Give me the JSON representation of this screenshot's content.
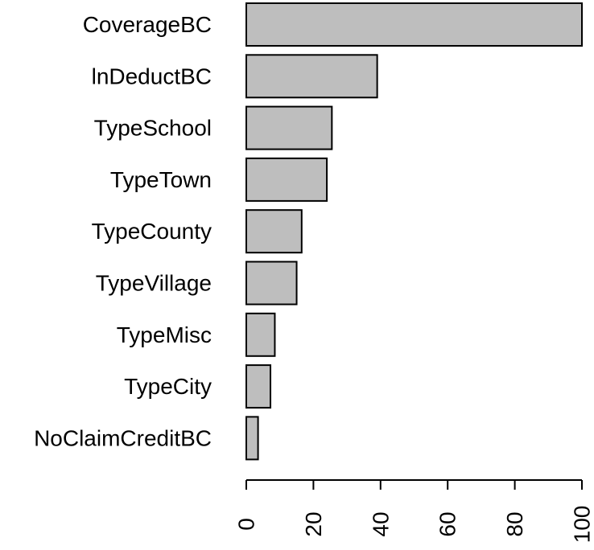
{
  "chart_data": {
    "type": "bar",
    "orientation": "horizontal",
    "categories": [
      "CoverageBC",
      "lnDeductBC",
      "TypeSchool",
      "TypeTown",
      "TypeCounty",
      "TypeVillage",
      "TypeMisc",
      "TypeCity",
      "NoClaimCreditBC"
    ],
    "values": [
      100,
      39,
      25.5,
      24,
      16.5,
      15,
      8.5,
      7.2,
      3.5
    ],
    "title": "",
    "xlabel": "",
    "ylabel": "",
    "xlim": [
      0,
      100
    ],
    "x_ticks": [
      "0",
      "20",
      "40",
      "60",
      "80",
      "100"
    ],
    "x_tick_label_rotation": "vertical",
    "grid": false,
    "legend": "none",
    "colors": {
      "bar_fill": "#bebebe",
      "bar_stroke": "#000000",
      "text": "#000000",
      "background": "#ffffff"
    }
  }
}
